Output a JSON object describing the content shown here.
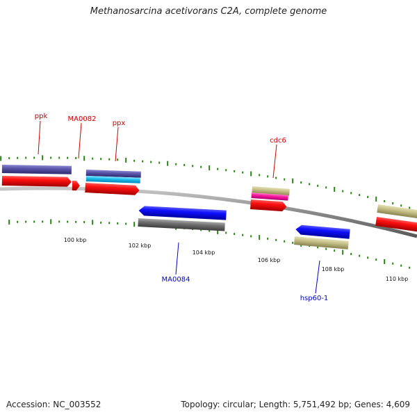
{
  "title": "Methanosarcina acetivorans C2A, complete genome",
  "footer": {
    "accession": "Accession: NC_003552",
    "summary": "Topology: circular; Length: 5,751,492 bp; Genes: 4,609"
  },
  "colors": {
    "backbone": "#8a8a8a",
    "tick": "#2e7d1a",
    "forward_label": "#cc0000",
    "reverse_label": "#0000cc"
  },
  "scale_labels": [
    "100 kbp",
    "102 kbp",
    "104 kbp",
    "106 kbp",
    "108 kbp",
    "110 kbp"
  ],
  "gene_labels": {
    "forward": [
      "ppk",
      "MA0082",
      "ppx",
      "cdc6"
    ],
    "reverse": [
      "MA0084",
      "hsp60-1"
    ]
  }
}
